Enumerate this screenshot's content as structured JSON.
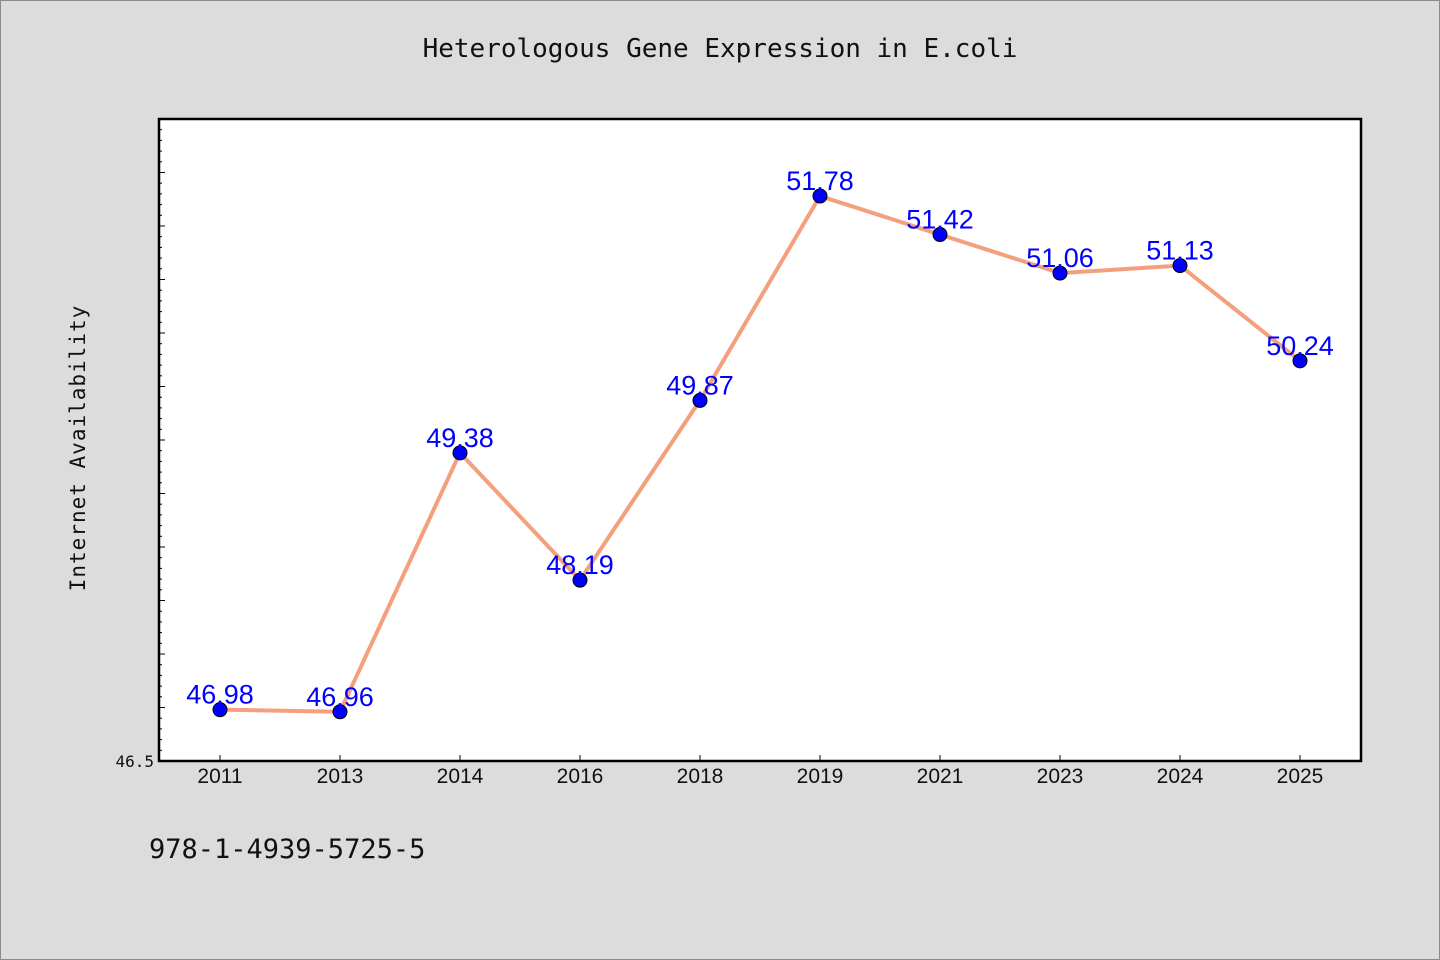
{
  "chart_data": {
    "type": "line",
    "title": "Heterologous Gene Expression in E.coli",
    "ylabel": "Internet Availability",
    "xlabel": "",
    "categories": [
      "2011",
      "2013",
      "2014",
      "2016",
      "2018",
      "2019",
      "2021",
      "2023",
      "2024",
      "2025"
    ],
    "series": [
      {
        "values": [
          46.98,
          46.96,
          49.38,
          48.19,
          49.87,
          51.78,
          51.42,
          51.06,
          51.13,
          50.24
        ],
        "data_labels": [
          "46.98",
          "46.96",
          "49.38",
          "48.19",
          "49.87",
          "51.78",
          "51.42",
          "51.06",
          "51.13",
          "50.24"
        ]
      }
    ],
    "y_tick_labels": [
      "46.5"
    ],
    "ylim": [
      46.5,
      52.5
    ],
    "grid": false,
    "line_color": "#f4a07e",
    "marker_color": "#0000ff",
    "label_color": "#0000ff"
  },
  "footer_text": "978-1-4939-5725-5"
}
